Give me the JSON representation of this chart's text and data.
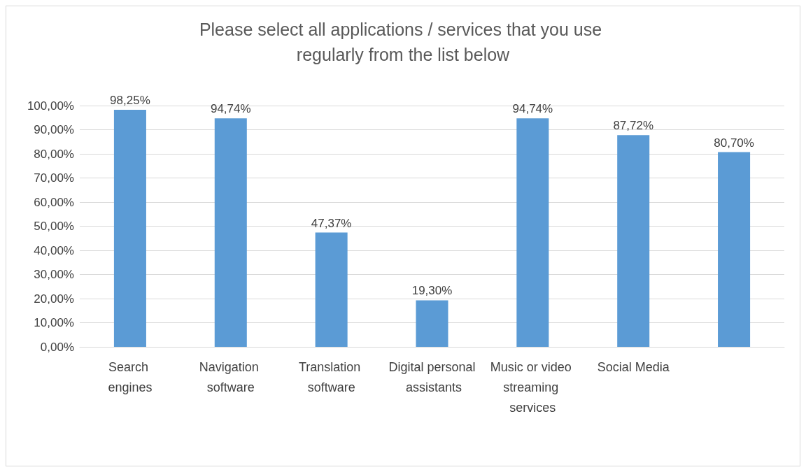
{
  "chart_data": {
    "type": "bar",
    "title": "Please select all applications / services that you use regularly from the list below",
    "categories": [
      "Search engines",
      "Navigation software",
      "Translation software",
      "Digital personal assistants",
      "Music or video streaming services",
      "Social Media",
      null
    ],
    "values": [
      98.25,
      94.74,
      47.37,
      19.3,
      94.74,
      87.72,
      80.7
    ],
    "value_labels": [
      "98,25%",
      "94,74%",
      "47,37%",
      "19,30%",
      "94,74%",
      "87,72%",
      "80,70%"
    ],
    "color": "#5b9bd5",
    "ylim": [
      0,
      100
    ],
    "yticks": [
      {
        "value": 0,
        "label": "0,00%"
      },
      {
        "value": 10,
        "label": "10,00%"
      },
      {
        "value": 20,
        "label": "20,00%"
      },
      {
        "value": 30,
        "label": "30,00%"
      },
      {
        "value": 40,
        "label": "40,00%"
      },
      {
        "value": 50,
        "label": "50,00%"
      },
      {
        "value": 60,
        "label": "60,00%"
      },
      {
        "value": 70,
        "label": "70,00%"
      },
      {
        "value": 80,
        "label": "80,00%"
      },
      {
        "value": 90,
        "label": "90,00%"
      },
      {
        "value": 100,
        "label": "100,00%"
      }
    ],
    "grid": "y"
  }
}
